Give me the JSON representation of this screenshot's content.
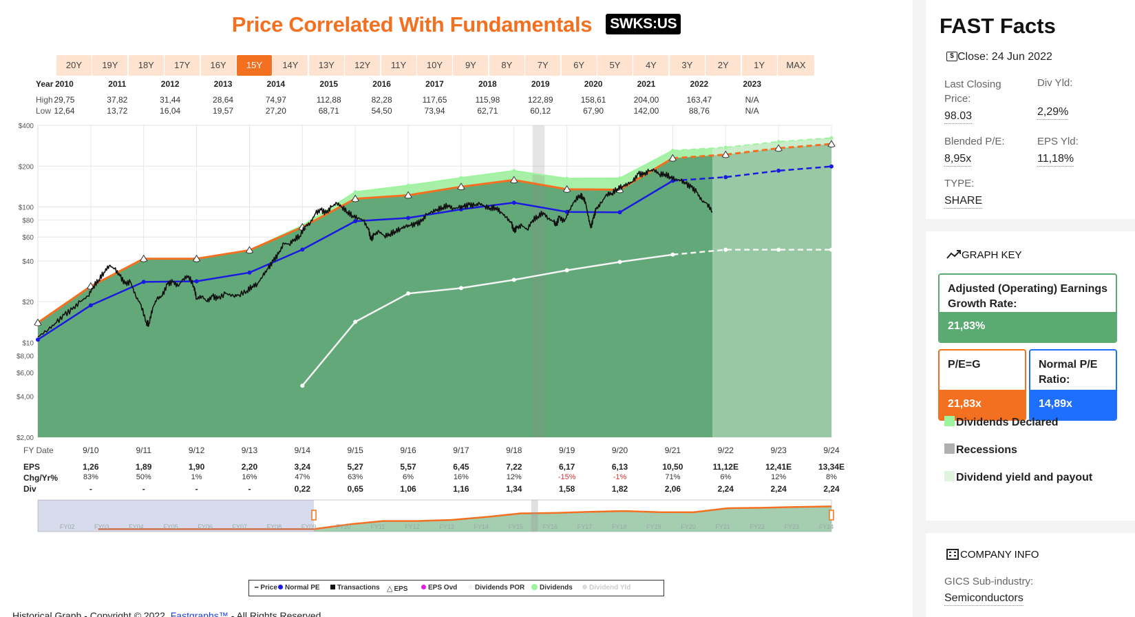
{
  "chart_data": {
    "type": "line",
    "title": "Price Correlated With Fundamentals",
    "ticker": "SWKS:US",
    "range_buttons": [
      "20Y",
      "19Y",
      "18Y",
      "17Y",
      "16Y",
      "15Y",
      "14Y",
      "13Y",
      "12Y",
      "11Y",
      "10Y",
      "9Y",
      "8Y",
      "7Y",
      "6Y",
      "5Y",
      "4Y",
      "3Y",
      "2Y",
      "1Y",
      "MAX"
    ],
    "active_range": "15Y",
    "years_header": [
      "2010",
      "2011",
      "2012",
      "2013",
      "2014",
      "2015",
      "2016",
      "2017",
      "2018",
      "2019",
      "2020",
      "2021",
      "2022",
      "2023"
    ],
    "high": [
      "29,75",
      "37,82",
      "31,44",
      "28,64",
      "74,97",
      "112,88",
      "82,28",
      "117,65",
      "115,98",
      "122,89",
      "158,61",
      "204,00",
      "163,47",
      "N/A"
    ],
    "low": [
      "12,64",
      "13,72",
      "16,04",
      "19,57",
      "27,20",
      "68,71",
      "54,50",
      "73,94",
      "62,71",
      "60,12",
      "67,90",
      "142,00",
      "88,76",
      "N/A"
    ],
    "row_labels": {
      "year": "Year",
      "high": "High",
      "low": "Low",
      "fy_date": "FY Date",
      "eps": "EPS",
      "chg": "Chg/Yr%",
      "div": "Div"
    },
    "y_axis_scale": "log",
    "ylim": [
      2,
      400
    ],
    "y_ticks": [
      {
        "v": 400,
        "label": "$400"
      },
      {
        "v": 200,
        "label": "$200"
      },
      {
        "v": 100,
        "label": "$100"
      },
      {
        "v": 80,
        "label": "$80"
      },
      {
        "v": 60,
        "label": "$60"
      },
      {
        "v": 40,
        "label": "$40"
      },
      {
        "v": 20,
        "label": "$20"
      },
      {
        "v": 10,
        "label": "$10"
      },
      {
        "v": 8,
        "label": "$8,00"
      },
      {
        "v": 6,
        "label": "$6,00"
      },
      {
        "v": 4,
        "label": "$4,00"
      },
      {
        "v": 2,
        "label": "$2,00"
      }
    ],
    "x_start": 2009.75,
    "x_end": 2024.75,
    "fy_dates": [
      "9/10",
      "9/11",
      "9/12",
      "9/13",
      "9/14",
      "9/15",
      "9/16",
      "9/17",
      "9/18",
      "9/19",
      "9/20",
      "9/21",
      "9/22",
      "9/23",
      "9/24"
    ],
    "eps": [
      "1,26",
      "1,89",
      "1,90",
      "2,20",
      "3,24",
      "5,27",
      "5,57",
      "6,45",
      "7,22",
      "6,17",
      "6,13",
      "10,50",
      "11,12E",
      "12,41E",
      "13,34E"
    ],
    "chg_yr": [
      "83%",
      "50%",
      "1%",
      "16%",
      "47%",
      "63%",
      "6%",
      "16%",
      "12%",
      "-15%",
      "-1%",
      "71%",
      "6%",
      "12%",
      "8%"
    ],
    "div": [
      "-",
      "-",
      "-",
      "-",
      "0,22",
      "0,65",
      "1,06",
      "1,16",
      "1,34",
      "1,58",
      "1,82",
      "2,06",
      "2,24",
      "2,24",
      "2,24"
    ],
    "series": [
      {
        "name": "EPS (P/E=G)",
        "color": "#f37021",
        "points": [
          [
            2009.75,
            14
          ],
          [
            2010.75,
            26
          ],
          [
            2011.75,
            41.5
          ],
          [
            2012.75,
            41.5
          ],
          [
            2013.75,
            48
          ],
          [
            2014.75,
            71
          ],
          [
            2015.75,
            115
          ],
          [
            2016.75,
            122
          ],
          [
            2017.75,
            141
          ],
          [
            2018.75,
            158
          ],
          [
            2019.75,
            135
          ],
          [
            2020.75,
            134
          ],
          [
            2021.75,
            229
          ],
          [
            2022.75,
            243
          ],
          [
            2023.75,
            271
          ],
          [
            2024.75,
            291
          ]
        ]
      },
      {
        "name": "Normal PE",
        "color": "#1a1ae0",
        "points": [
          [
            2009.75,
            10.5
          ],
          [
            2010.75,
            18.8
          ],
          [
            2011.75,
            28
          ],
          [
            2012.75,
            28.3
          ],
          [
            2013.75,
            32.8
          ],
          [
            2014.75,
            48.5
          ],
          [
            2015.75,
            78.5
          ],
          [
            2016.75,
            83
          ],
          [
            2017.75,
            96
          ],
          [
            2018.75,
            107.5
          ],
          [
            2019.75,
            91.9
          ],
          [
            2020.75,
            91.3
          ],
          [
            2021.75,
            156
          ],
          [
            2022.75,
            166
          ],
          [
            2023.75,
            185
          ],
          [
            2024.75,
            199
          ]
        ]
      },
      {
        "name": "Dividends",
        "color": "#9cf59c",
        "points": [
          [
            2009.75,
            14
          ],
          [
            2010.75,
            26
          ],
          [
            2011.75,
            41.5
          ],
          [
            2012.75,
            41.5
          ],
          [
            2013.75,
            48
          ],
          [
            2014.75,
            73
          ],
          [
            2015.75,
            129
          ],
          [
            2016.75,
            144
          ],
          [
            2017.75,
            164
          ],
          [
            2018.75,
            185
          ],
          [
            2019.75,
            162
          ],
          [
            2020.75,
            163
          ],
          [
            2021.75,
            261
          ],
          [
            2022.75,
            275
          ],
          [
            2023.75,
            303
          ],
          [
            2024.75,
            323
          ]
        ]
      },
      {
        "name": "Dividend Yld",
        "color": "#f2f2f2",
        "points": [
          [
            2014.75,
            4.8
          ],
          [
            2015.75,
            14.2
          ],
          [
            2016.75,
            23
          ],
          [
            2017.75,
            25.2
          ],
          [
            2018.75,
            29
          ],
          [
            2019.75,
            34.1
          ],
          [
            2020.75,
            39.3
          ],
          [
            2021.75,
            44.5
          ],
          [
            2022.75,
            48.4
          ],
          [
            2023.75,
            48.4
          ],
          [
            2024.75,
            48.4
          ]
        ]
      },
      {
        "name": "Price",
        "color": "#111111",
        "points": [
          [
            2009.75,
            11
          ],
          [
            2009.95,
            12.5
          ],
          [
            2010.1,
            14
          ],
          [
            2010.25,
            16
          ],
          [
            2010.4,
            17.5
          ],
          [
            2010.55,
            20
          ],
          [
            2010.7,
            22
          ],
          [
            2010.8,
            26
          ],
          [
            2010.9,
            29
          ],
          [
            2011,
            33
          ],
          [
            2011.1,
            37
          ],
          [
            2011.2,
            35
          ],
          [
            2011.3,
            31
          ],
          [
            2011.4,
            27
          ],
          [
            2011.5,
            28
          ],
          [
            2011.6,
            22
          ],
          [
            2011.7,
            19
          ],
          [
            2011.8,
            14
          ],
          [
            2011.85,
            13.7
          ],
          [
            2011.92,
            18
          ],
          [
            2012,
            21
          ],
          [
            2012.1,
            22
          ],
          [
            2012.2,
            27
          ],
          [
            2012.3,
            28
          ],
          [
            2012.4,
            26
          ],
          [
            2012.5,
            29.5
          ],
          [
            2012.6,
            31
          ],
          [
            2012.7,
            26
          ],
          [
            2012.75,
            21
          ],
          [
            2012.85,
            22
          ],
          [
            2012.95,
            20
          ],
          [
            2013.05,
            22
          ],
          [
            2013.15,
            21
          ],
          [
            2013.3,
            23
          ],
          [
            2013.45,
            22
          ],
          [
            2013.55,
            22.5
          ],
          [
            2013.7,
            24
          ],
          [
            2013.8,
            26
          ],
          [
            2013.9,
            27
          ],
          [
            2014,
            31
          ],
          [
            2014.1,
            35
          ],
          [
            2014.2,
            40
          ],
          [
            2014.3,
            45
          ],
          [
            2014.4,
            54
          ],
          [
            2014.5,
            53
          ],
          [
            2014.6,
            58
          ],
          [
            2014.7,
            61
          ],
          [
            2014.8,
            72
          ],
          [
            2014.9,
            76
          ],
          [
            2015,
            90
          ],
          [
            2015.1,
            95
          ],
          [
            2015.2,
            90
          ],
          [
            2015.3,
            100
          ],
          [
            2015.4,
            107
          ],
          [
            2015.5,
            100
          ],
          [
            2015.6,
            92
          ],
          [
            2015.7,
            86
          ],
          [
            2015.8,
            83
          ],
          [
            2015.9,
            80
          ],
          [
            2016,
            68
          ],
          [
            2016.05,
            57
          ],
          [
            2016.1,
            62
          ],
          [
            2016.2,
            66
          ],
          [
            2016.3,
            61
          ],
          [
            2016.4,
            63
          ],
          [
            2016.5,
            66
          ],
          [
            2016.6,
            69
          ],
          [
            2016.7,
            72
          ],
          [
            2016.8,
            73
          ],
          [
            2016.9,
            75
          ],
          [
            2017,
            78
          ],
          [
            2017.1,
            88
          ],
          [
            2017.2,
            92
          ],
          [
            2017.3,
            96
          ],
          [
            2017.4,
            99
          ],
          [
            2017.5,
            103
          ],
          [
            2017.6,
            97
          ],
          [
            2017.7,
            99
          ],
          [
            2017.8,
            100
          ],
          [
            2017.9,
            104
          ],
          [
            2018,
            102
          ],
          [
            2018.1,
            106
          ],
          [
            2018.2,
            101
          ],
          [
            2018.3,
            98
          ],
          [
            2018.4,
            99
          ],
          [
            2018.5,
            92
          ],
          [
            2018.6,
            84
          ],
          [
            2018.7,
            76
          ],
          [
            2018.75,
            66
          ],
          [
            2018.8,
            70
          ],
          [
            2018.9,
            73
          ],
          [
            2019,
            68
          ],
          [
            2019.1,
            80
          ],
          [
            2019.2,
            85
          ],
          [
            2019.3,
            91
          ],
          [
            2019.4,
            82
          ],
          [
            2019.5,
            78
          ],
          [
            2019.55,
            73
          ],
          [
            2019.6,
            84
          ],
          [
            2019.7,
            78
          ],
          [
            2019.8,
            95
          ],
          [
            2019.9,
            112
          ],
          [
            2020,
            122
          ],
          [
            2020.05,
            118
          ],
          [
            2020.1,
            109
          ],
          [
            2020.15,
            86
          ],
          [
            2020.2,
            70
          ],
          [
            2020.25,
            82
          ],
          [
            2020.3,
            96
          ],
          [
            2020.4,
            107
          ],
          [
            2020.5,
            124
          ],
          [
            2020.6,
            126
          ],
          [
            2020.7,
            136
          ],
          [
            2020.8,
            142
          ],
          [
            2020.9,
            148
          ],
          [
            2021,
            154
          ],
          [
            2021.1,
            176
          ],
          [
            2021.2,
            173
          ],
          [
            2021.3,
            184
          ],
          [
            2021.4,
            188
          ],
          [
            2021.5,
            174
          ],
          [
            2021.6,
            175
          ],
          [
            2021.7,
            167
          ],
          [
            2021.8,
            160
          ],
          [
            2021.9,
            157
          ],
          [
            2022,
            148
          ],
          [
            2022.1,
            140
          ],
          [
            2022.2,
            129
          ],
          [
            2022.3,
            111
          ],
          [
            2022.4,
            106
          ],
          [
            2022.5,
            92
          ]
        ]
      }
    ],
    "recession": [
      2019.1,
      2019.33
    ],
    "legend": [
      "Price",
      "Normal PE",
      "Transactions",
      "EPS",
      "EPS Ovd",
      "Dividends POR",
      "Dividends",
      "Dividend Yld"
    ],
    "navigator_labels": [
      "FY02",
      "FY03",
      "FY04",
      "FY05",
      "FY06",
      "FY07",
      "FY08",
      "FY09",
      "FY10",
      "FY11",
      "FY12",
      "FY13",
      "FY14",
      "FY15",
      "FY16",
      "FY17",
      "FY18",
      "FY19",
      "FY20",
      "FY21",
      "FY22",
      "FY23",
      "FY24"
    ]
  },
  "footer": {
    "text_before": "Historical Graph - Copyright © 2022,",
    "link": "Fastgraphs™",
    "text_after": "- All Rights Reserved."
  },
  "fast_facts": {
    "title": "FAST Facts",
    "close_label": "Close: 24 Jun 2022",
    "last_closing_label": "Last Closing Price:",
    "last_closing_value": "98.03",
    "div_yld_label": "Div Yld:",
    "div_yld_value": "2,29%",
    "blended_pe_label": "Blended P/E:",
    "blended_pe_value": "8,95x",
    "eps_yld_label": "EPS Yld:",
    "eps_yld_value": "11,18%",
    "type_label": "TYPE:",
    "type_value": "SHARE"
  },
  "graph_key": {
    "title": "GRAPH KEY",
    "growth_label": "Adjusted (Operating) Earnings Growth Rate:",
    "growth_value": "21,83%",
    "peg_label": "P/E=G",
    "peg_value": "21,83x",
    "normal_pe_label": "Normal P/E Ratio:",
    "normal_pe_value": "14,89x",
    "dividends_declared": "Dividends Declared",
    "recessions": "Recessions",
    "div_yield_payout": "Dividend yield and payout",
    "colors": {
      "green": "#5aaa72",
      "orange": "#f37021",
      "blue": "#1f6fff",
      "light_green": "#9cf59c",
      "gray": "#b0b0b0",
      "pale_green": "#dff3df"
    }
  },
  "company_info": {
    "title": "COMPANY INFO",
    "gics_label": "GICS Sub-industry:",
    "gics_value": "Semiconductors"
  }
}
